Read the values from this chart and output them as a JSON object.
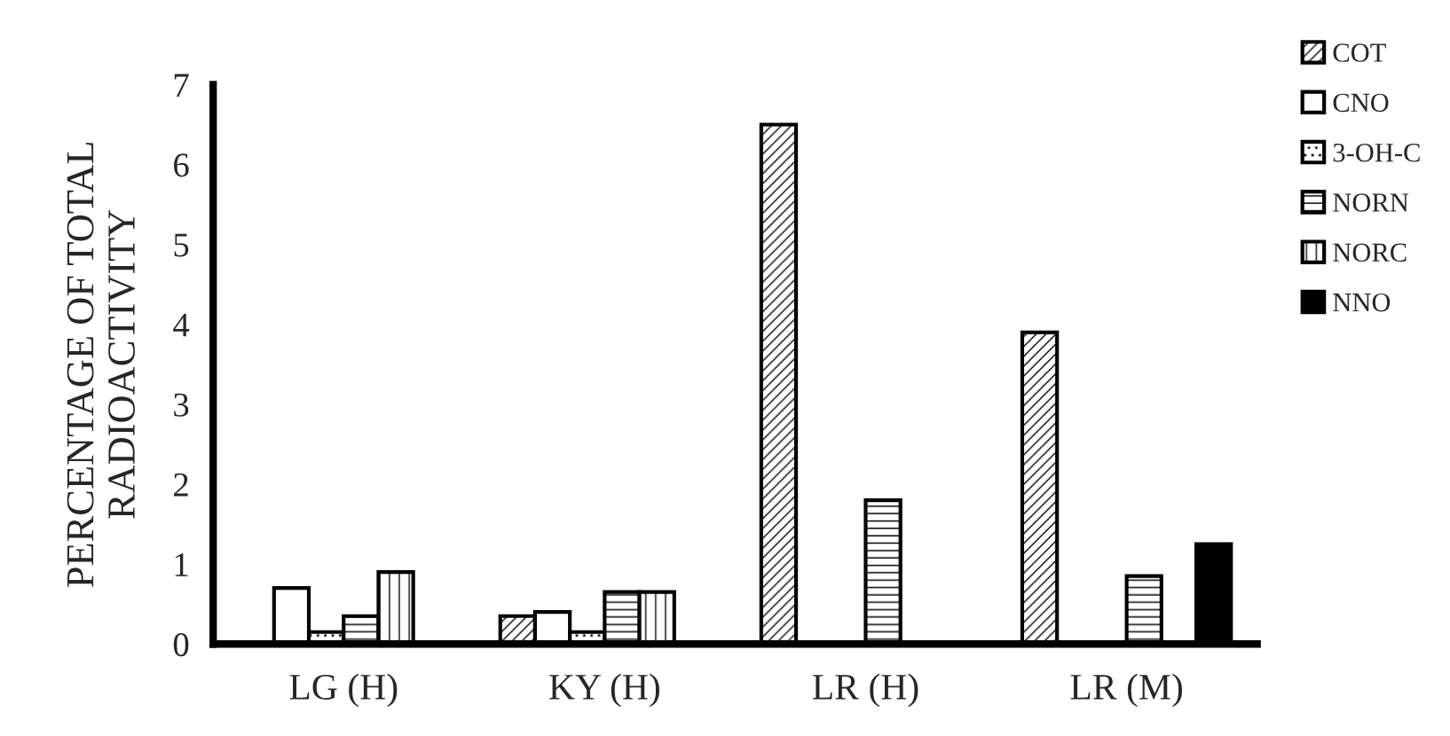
{
  "chart_data": {
    "type": "bar",
    "ylabel": "PERCENTAGE OF TOTAL\nRADIOACTIVITY",
    "categories": [
      "LG (H)",
      "KY (H)",
      "LR (H)",
      "LR (M)"
    ],
    "series": [
      {
        "name": "COT",
        "color": "#000000",
        "values": [
          0,
          0.35,
          6.5,
          3.9
        ]
      },
      {
        "name": "CNO",
        "color": "#ffffff",
        "values": [
          0.7,
          0.4,
          0,
          0
        ]
      },
      {
        "name": "3-OH-C",
        "color": "#000000",
        "values": [
          0.15,
          0.15,
          0,
          0
        ]
      },
      {
        "name": "NORN",
        "color": "#000000",
        "values": [
          0.35,
          0.65,
          1.8,
          0.85
        ]
      },
      {
        "name": "NORC",
        "color": "#000000",
        "values": [
          0.9,
          0.65,
          0,
          0
        ]
      },
      {
        "name": "NNO",
        "color": "#000000",
        "values": [
          0,
          0,
          0,
          1.25
        ]
      }
    ],
    "ylim": [
      0,
      7
    ],
    "yticks": [
      0,
      1,
      2,
      3,
      4,
      5,
      6,
      7
    ],
    "grid": false,
    "legend": "top right"
  }
}
